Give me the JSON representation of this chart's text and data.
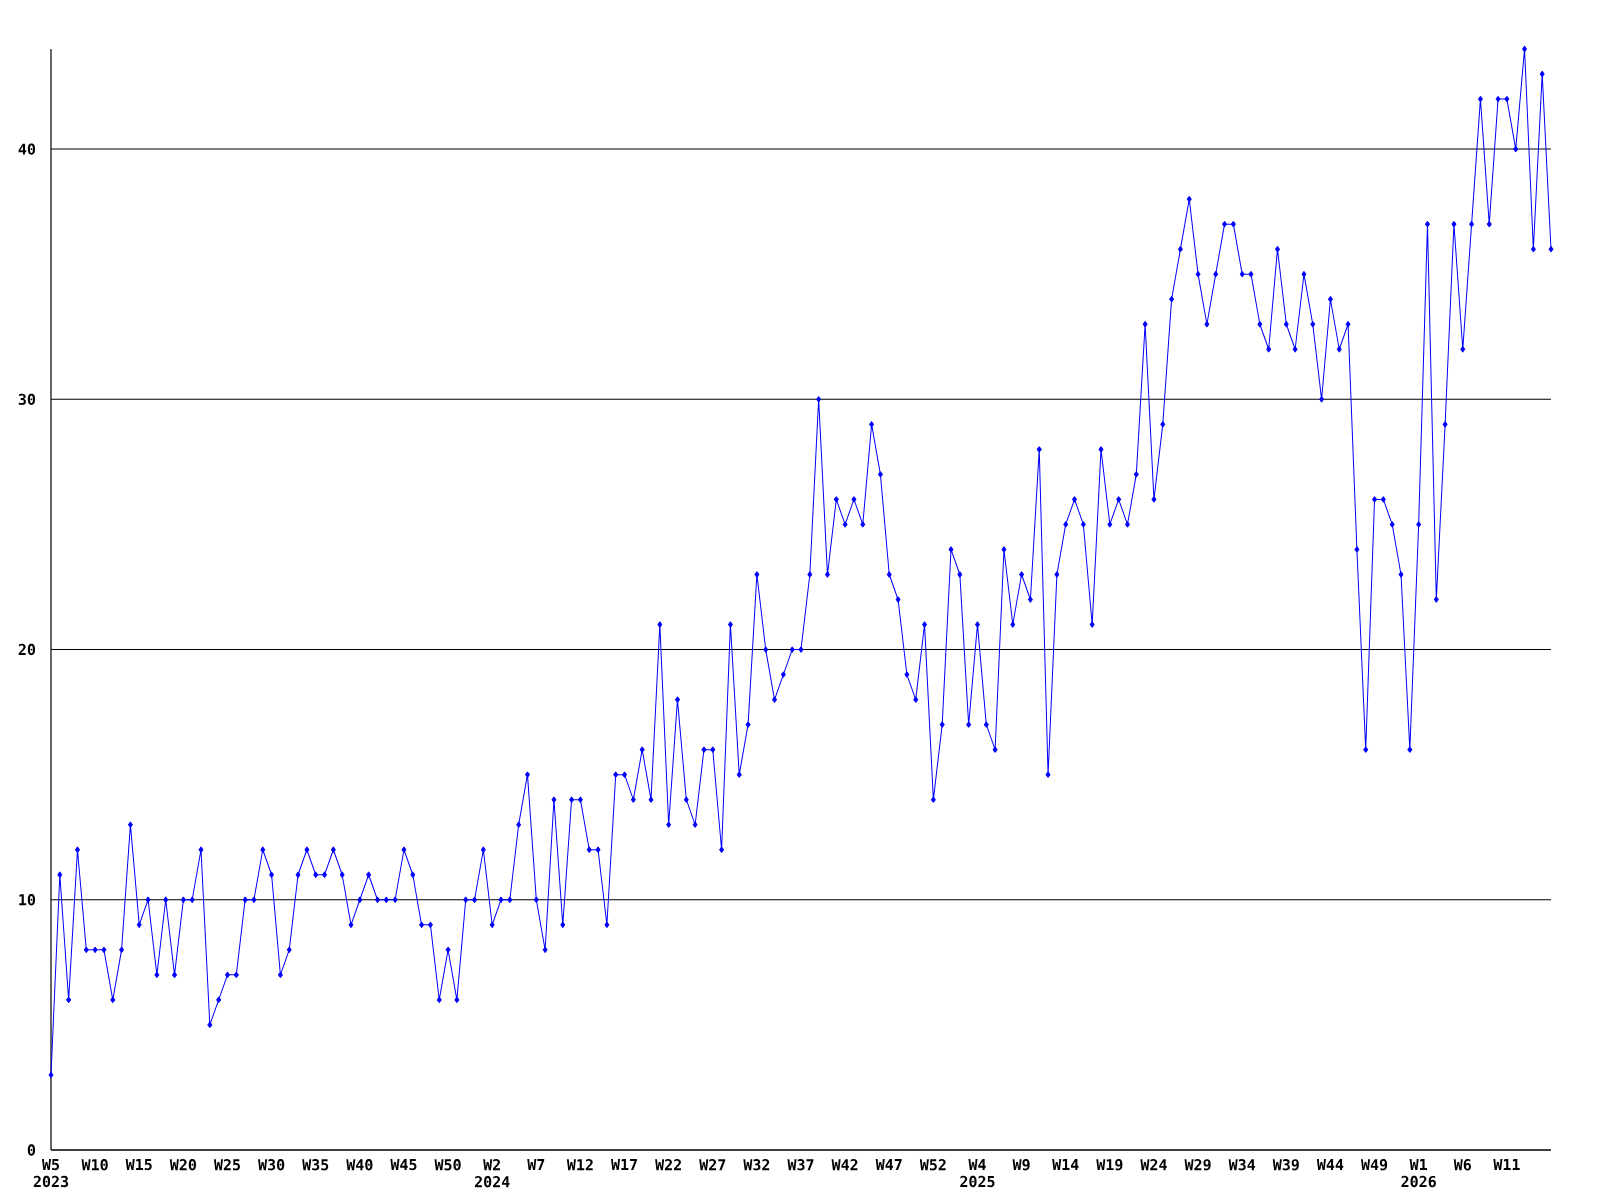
{
  "chart_data": {
    "type": "line",
    "categories": [
      "W5 2023",
      null,
      null,
      null,
      null,
      "W10",
      null,
      null,
      null,
      null,
      "W15",
      null,
      null,
      null,
      null,
      "W20",
      null,
      null,
      null,
      null,
      "W25",
      null,
      null,
      null,
      null,
      "W30",
      null,
      null,
      null,
      null,
      "W35",
      null,
      null,
      null,
      null,
      "W40",
      null,
      null,
      null,
      null,
      "W45",
      null,
      null,
      null,
      null,
      "W50",
      null,
      null,
      null,
      null,
      "W2 2024",
      null,
      null,
      null,
      null,
      "W7",
      null,
      null,
      null,
      null,
      "W12",
      null,
      null,
      null,
      null,
      "W17",
      null,
      null,
      null,
      null,
      "W22",
      null,
      null,
      null,
      null,
      "W27",
      null,
      null,
      null,
      null,
      "W32",
      null,
      null,
      null,
      null,
      "W37",
      null,
      null,
      null,
      null,
      "W42",
      null,
      null,
      null,
      null,
      "W47",
      null,
      null,
      null,
      null,
      "W52",
      null,
      null,
      null,
      null,
      "W4 2025",
      null,
      null,
      null,
      null,
      "W9",
      null,
      null,
      null,
      null,
      "W14",
      null,
      null,
      null,
      null,
      "W19",
      null,
      null,
      null,
      null,
      "W24",
      null,
      null,
      null,
      null,
      "W29",
      null,
      null,
      null,
      null,
      "W34",
      null,
      null,
      null,
      null,
      "W39",
      null,
      null,
      null,
      null,
      "W44",
      null,
      null,
      null,
      null,
      "W49",
      null,
      null,
      null,
      null,
      "W1 2026",
      null,
      null,
      null,
      null,
      "W6",
      null,
      null,
      null,
      null,
      "W11",
      null,
      null,
      null,
      null,
      null
    ],
    "values": [
      3,
      11,
      6,
      12,
      8,
      8,
      8,
      6,
      8,
      13,
      9,
      10,
      7,
      10,
      7,
      10,
      10,
      12,
      5,
      6,
      7,
      7,
      10,
      10,
      12,
      11,
      7,
      8,
      11,
      12,
      11,
      11,
      12,
      11,
      9,
      10,
      11,
      10,
      10,
      10,
      12,
      11,
      9,
      9,
      6,
      8,
      6,
      10,
      10,
      12,
      9,
      10,
      10,
      13,
      15,
      10,
      8,
      14,
      9,
      14,
      14,
      12,
      12,
      9,
      15,
      15,
      14,
      16,
      14,
      21,
      13,
      18,
      14,
      13,
      16,
      16,
      12,
      21,
      15,
      17,
      23,
      20,
      18,
      19,
      20,
      20,
      23,
      30,
      23,
      26,
      25,
      26,
      25,
      29,
      27,
      23,
      22,
      19,
      18,
      21,
      14,
      17,
      24,
      23,
      17,
      21,
      17,
      16,
      24,
      21,
      23,
      22,
      28,
      15,
      23,
      25,
      26,
      25,
      21,
      28,
      25,
      26,
      25,
      27,
      33,
      26,
      29,
      34,
      36,
      38,
      35,
      33,
      35,
      37,
      37,
      35,
      35,
      33,
      32,
      36,
      33,
      32,
      35,
      33,
      30,
      34,
      32,
      33,
      24,
      16,
      26,
      26,
      25,
      23,
      16,
      25,
      37,
      22,
      29,
      37,
      32,
      37,
      42,
      37,
      42,
      42,
      40,
      44,
      36,
      43,
      36
    ],
    "color": "#0000ff",
    "ylim": [
      0,
      44
    ],
    "yticks": [
      0,
      10,
      20,
      30,
      40
    ],
    "grid": "y",
    "marker": "diamond",
    "line_style": "solid"
  }
}
